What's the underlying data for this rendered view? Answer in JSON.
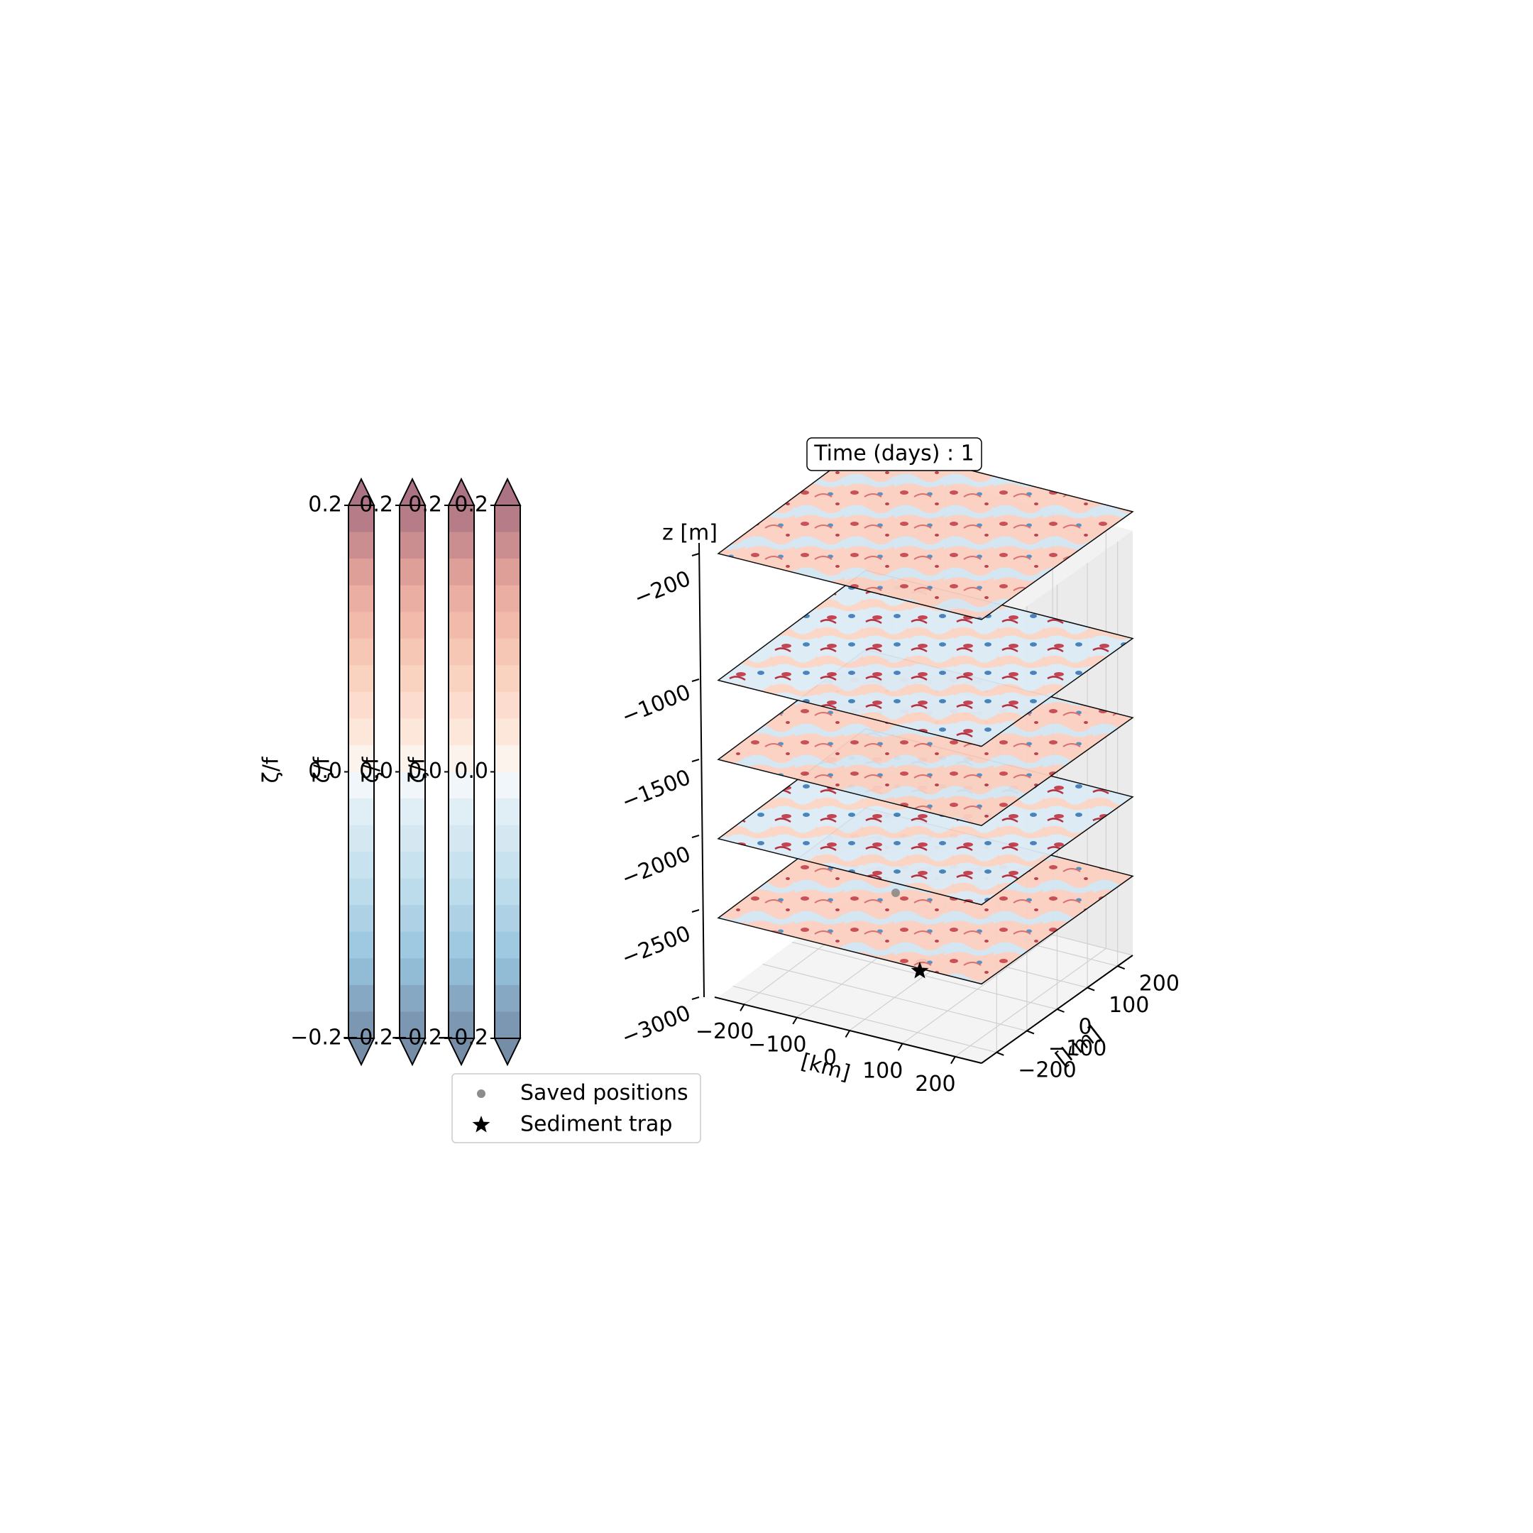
{
  "chart_data": [
    {
      "type": "colorbar",
      "label": "ζ/f",
      "vmin": -0.2,
      "vmax": 0.2,
      "ticks": [
        "−0.2",
        "0.0",
        "0.2"
      ],
      "count": 4,
      "colormap": "RdBu_r",
      "extend": "both"
    },
    {
      "type": "3d-stacked-surfaces",
      "title": "Time (days) : 1",
      "zlabel": "z [m]",
      "xlabel": "[km]",
      "ylabel": "[km]",
      "xticks": [
        "−200",
        "−100",
        "0",
        "100",
        "200"
      ],
      "yticks": [
        "−200",
        "−100",
        "0",
        "100",
        "200"
      ],
      "zticks": [
        "−200",
        "−1000",
        "−1500",
        "−2000",
        "−2500",
        "−3000"
      ],
      "layer_depths": [
        -200,
        -1000,
        -1500,
        -2000,
        -2500
      ],
      "zlim": [
        -3000,
        -200
      ],
      "xlim": [
        -250,
        250
      ],
      "ylim": [
        -250,
        250
      ],
      "grid": true,
      "markers": [
        {
          "name": "Saved positions",
          "x": 0,
          "y": 0,
          "z": -2450,
          "symbol": "circle",
          "color": "#808080"
        },
        {
          "name": "Sediment trap",
          "x": 0,
          "y": 20,
          "z": -3000,
          "symbol": "star",
          "color": "#000000"
        }
      ]
    }
  ],
  "legend": {
    "items": [
      {
        "label": "Saved positions",
        "symbol": "circle"
      },
      {
        "label": "Sediment trap",
        "symbol": "star"
      }
    ]
  }
}
